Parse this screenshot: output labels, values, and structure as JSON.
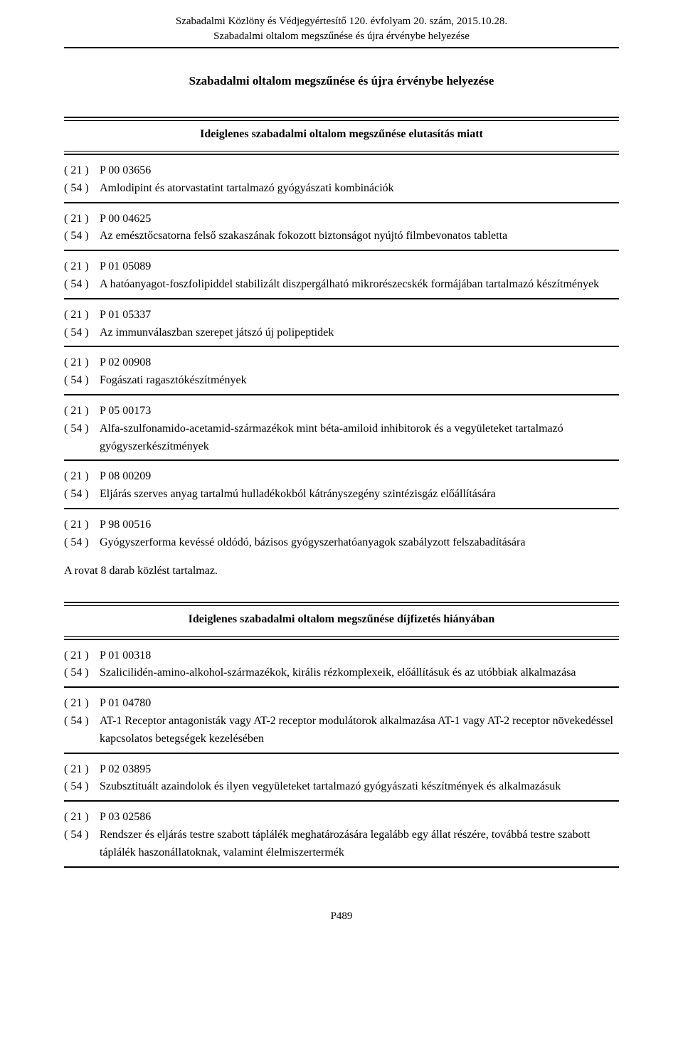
{
  "header": {
    "line1": "Szabadalmi Közlöny és Védjegyértesítő 120. évfolyam 20. szám, 2015.10.28.",
    "line2": "Szabadalmi oltalom megszűnése és újra érvénybe helyezése"
  },
  "pageTitle": "Szabadalmi oltalom megszűnése és újra érvénybe helyezése",
  "section1": {
    "title": "Ideiglenes szabadalmi oltalom megszűnése elutasítás miatt",
    "entries": [
      {
        "c21": "( 21 )",
        "v21": "P 00 03656",
        "c54": "( 54 )",
        "v54": "Amlodipint és atorvastatint tartalmazó gyógyászati kombinációk"
      },
      {
        "c21": "( 21 )",
        "v21": "P 00 04625",
        "c54": "( 54 )",
        "v54": "Az emésztőcsatorna felső szakaszának fokozott biztonságot nyújtó filmbevonatos tabletta"
      },
      {
        "c21": "( 21 )",
        "v21": "P 01 05089",
        "c54": "( 54 )",
        "v54": "A hatóanyagot-foszfolipiddel stabilizált diszpergálható mikrorészecskék formájában tartalmazó készítmények"
      },
      {
        "c21": "( 21 )",
        "v21": "P 01 05337",
        "c54": "( 54 )",
        "v54": "Az immunválaszban szerepet játszó új polipeptidek"
      },
      {
        "c21": "( 21 )",
        "v21": "P 02 00908",
        "c54": "( 54 )",
        "v54": "Fogászati ragasztókészítmények"
      },
      {
        "c21": "( 21 )",
        "v21": "P 05 00173",
        "c54": "( 54 )",
        "v54": "Alfa-szulfonamido-acetamid-származékok mint béta-amiloid inhibitorok és a vegyületeket tartalmazó gyógyszerkészítmények"
      },
      {
        "c21": "( 21 )",
        "v21": "P 08 00209",
        "c54": "( 54 )",
        "v54": "Eljárás szerves anyag tartalmú hulladékokból kátrányszegény szintézisgáz előállítására"
      },
      {
        "c21": "( 21 )",
        "v21": "P 98 00516",
        "c54": "( 54 )",
        "v54": "Gyógyszerforma kevéssé oldódó, bázisos gyógyszerhatóanyagok szabályzott felszabadítására"
      }
    ],
    "rovat": "A rovat 8 darab közlést tartalmaz."
  },
  "section2": {
    "title": "Ideiglenes szabadalmi oltalom megszűnése díjfizetés hiányában",
    "entries": [
      {
        "c21": "( 21 )",
        "v21": "P 01 00318",
        "c54": "( 54 )",
        "v54": "Szalicilidén-amino-alkohol-származékok, királis rézkomplexeik, előállításuk és az utóbbiak alkalmazása"
      },
      {
        "c21": "( 21 )",
        "v21": "P 01 04780",
        "c54": "( 54 )",
        "v54": "AT-1 Receptor antagonisták vagy AT-2 receptor modulátorok alkalmazása AT-1 vagy AT-2 receptor növekedéssel kapcsolatos betegségek kezelésében"
      },
      {
        "c21": "( 21 )",
        "v21": "P 02 03895",
        "c54": "( 54 )",
        "v54": "Szubsztituált azaindolok és ilyen vegyületeket tartalmazó gyógyászati készítmények és alkalmazásuk"
      },
      {
        "c21": "( 21 )",
        "v21": "P 03 02586",
        "c54": "( 54 )",
        "v54": "Rendszer és eljárás testre szabott táplálék meghatározására legalább egy állat részére, továbbá testre szabott táplálék haszonállatoknak, valamint élelmiszertermék"
      }
    ]
  },
  "footer": "P489"
}
